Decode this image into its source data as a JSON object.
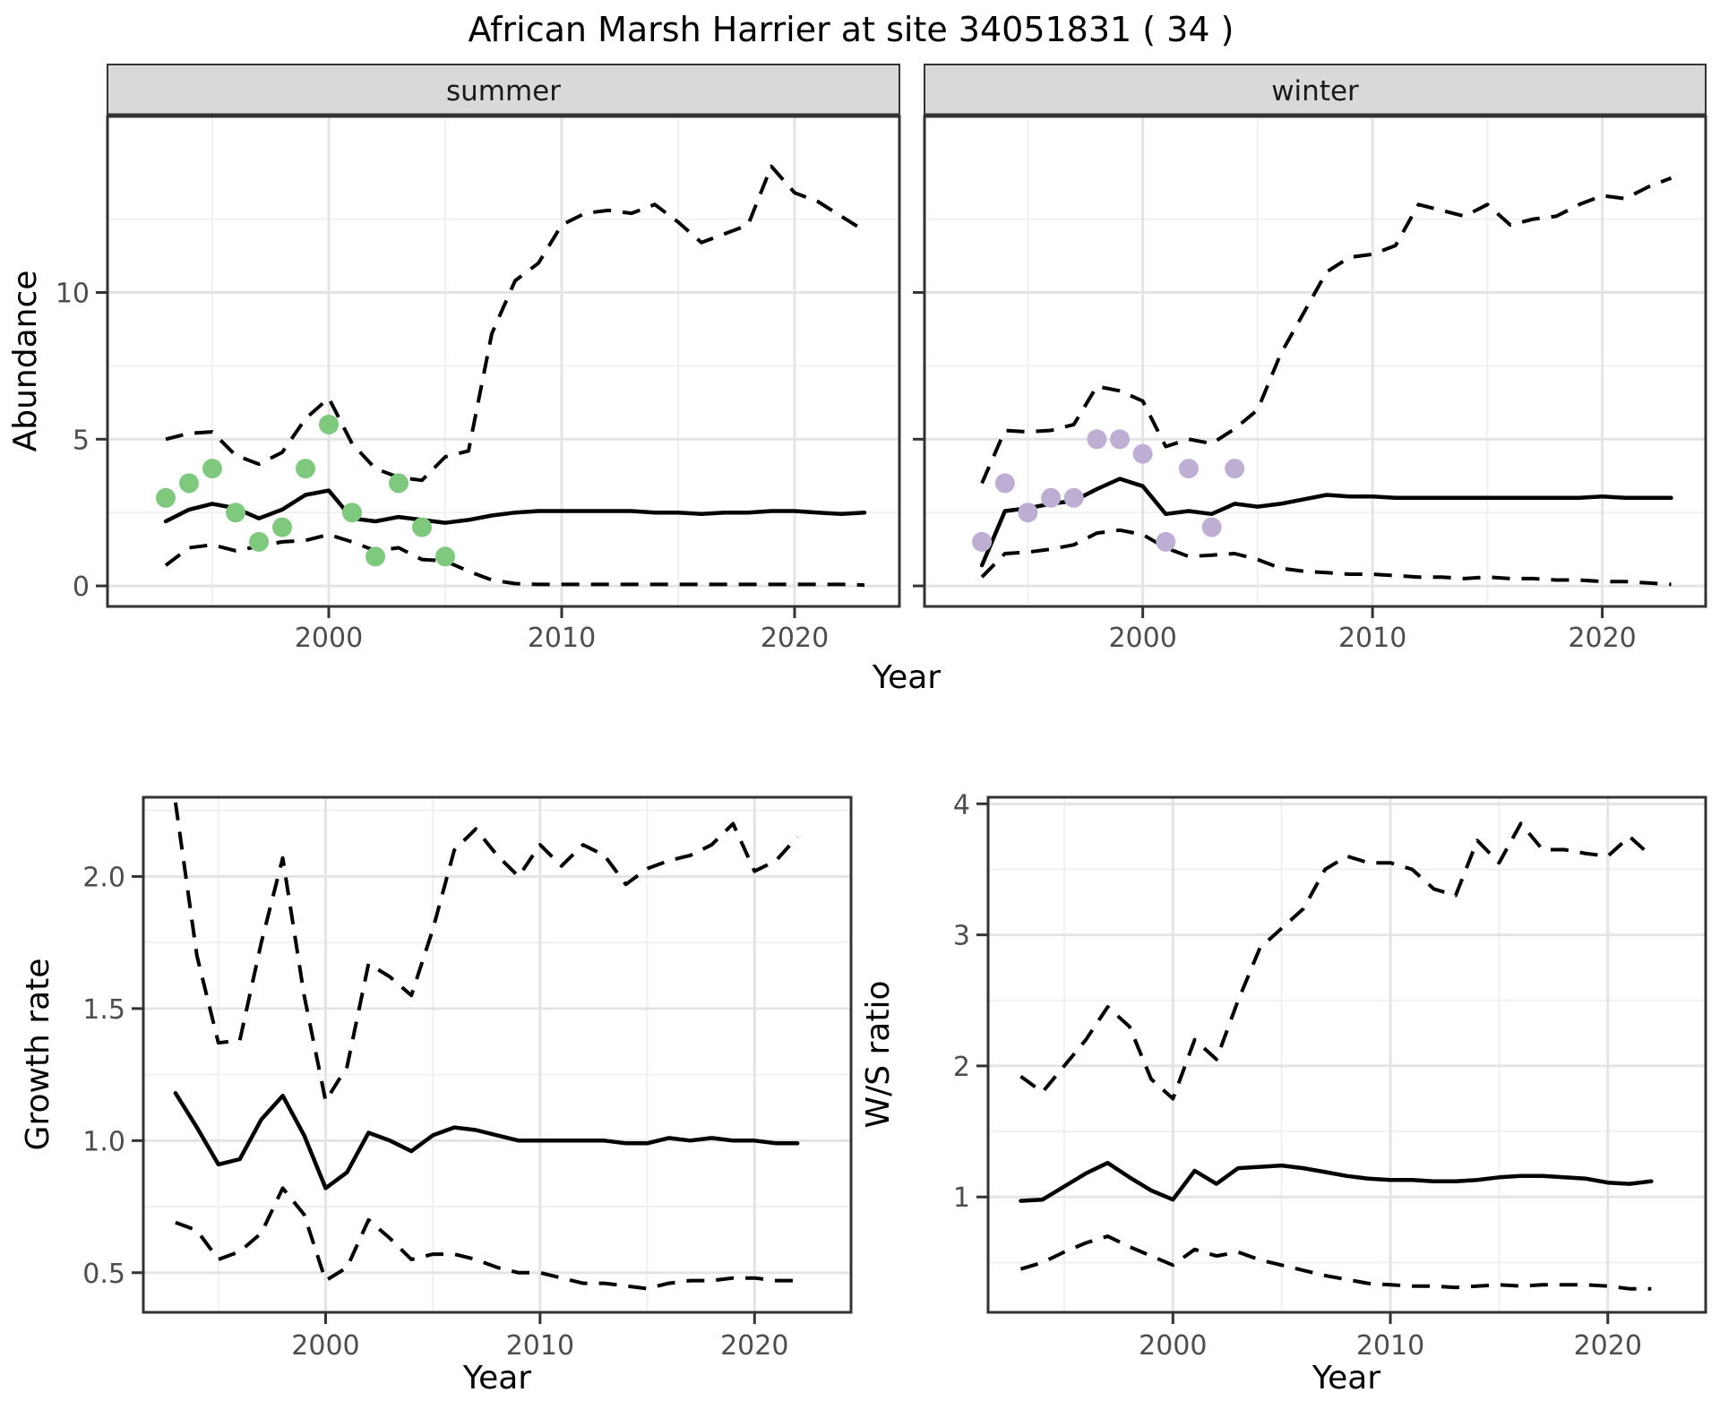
{
  "title": "African Marsh Harrier at site 34051831 ( 34 )",
  "facets": {
    "summer": "summer",
    "winter": "winter"
  },
  "shared_x_label": "Year",
  "colors": {
    "summer_points": "#7FC97F",
    "winter_points": "#BEAED4",
    "line": "#000000",
    "strip_bg": "#d9d9d9",
    "panel_border": "#333333",
    "grid_major": "#e4e4e4",
    "grid_minor": "#f0f0f0",
    "tick_text": "#4d4d4d"
  },
  "chart_data": [
    {
      "id": "abundance-summer",
      "type": "line",
      "facet": "summer",
      "xlabel": "Year",
      "ylabel": "Abundance",
      "xlim": [
        1990.5,
        2024.5
      ],
      "ylim": [
        -0.7,
        16.0
      ],
      "grid": true,
      "legend": "none",
      "x_ticks": {
        "major": [
          2000,
          2010,
          2020
        ],
        "minor": [
          1995,
          2005,
          2015
        ],
        "labels": [
          "2000",
          "2010",
          "2020"
        ]
      },
      "y_ticks": {
        "major": [
          0,
          5,
          10
        ],
        "minor": [
          2.5,
          7.5,
          12.5
        ],
        "labels": [
          "0",
          "5",
          "10"
        ]
      },
      "x": [
        1993,
        1994,
        1995,
        1996,
        1997,
        1998,
        1999,
        2000,
        2001,
        2002,
        2003,
        2004,
        2005,
        2006,
        2007,
        2008,
        2009,
        2010,
        2011,
        2012,
        2013,
        2014,
        2015,
        2016,
        2017,
        2018,
        2019,
        2020,
        2021,
        2022,
        2023
      ],
      "series": [
        {
          "name": "median",
          "style": "solid",
          "values": [
            2.2,
            2.6,
            2.8,
            2.65,
            2.3,
            2.6,
            3.1,
            3.25,
            2.3,
            2.2,
            2.35,
            2.25,
            2.15,
            2.25,
            2.4,
            2.5,
            2.55,
            2.55,
            2.55,
            2.55,
            2.55,
            2.5,
            2.5,
            2.45,
            2.5,
            2.5,
            2.55,
            2.55,
            2.5,
            2.45,
            2.5
          ]
        },
        {
          "name": "upper-ci",
          "style": "dashed",
          "values": [
            5.0,
            5.2,
            5.25,
            4.45,
            4.15,
            4.55,
            5.7,
            6.4,
            4.85,
            4.0,
            3.7,
            3.6,
            4.4,
            4.6,
            8.6,
            10.4,
            11.0,
            12.3,
            12.7,
            12.8,
            12.7,
            13.0,
            12.4,
            11.7,
            12.0,
            12.3,
            14.3,
            13.4,
            13.1,
            12.6,
            12.1
          ]
        },
        {
          "name": "lower-ci",
          "style": "dashed",
          "values": [
            0.7,
            1.3,
            1.4,
            1.2,
            1.35,
            1.5,
            1.55,
            1.75,
            1.5,
            1.2,
            1.3,
            0.9,
            0.85,
            0.5,
            0.2,
            0.08,
            0.05,
            0.05,
            0.05,
            0.05,
            0.05,
            0.05,
            0.05,
            0.05,
            0.05,
            0.05,
            0.05,
            0.05,
            0.05,
            0.05,
            0.03
          ]
        }
      ],
      "points": {
        "name": "observed-counts-summer",
        "color": "#7FC97F",
        "x": [
          1993,
          1994,
          1995,
          1996,
          1997,
          1998,
          1999,
          2000,
          2001,
          2002,
          2003,
          2004,
          2005
        ],
        "y": [
          3.0,
          3.5,
          4.0,
          2.5,
          1.5,
          2.0,
          4.0,
          5.5,
          2.5,
          1.0,
          3.5,
          2.0,
          1.0
        ]
      }
    },
    {
      "id": "abundance-winter",
      "type": "line",
      "facet": "winter",
      "xlabel": "Year",
      "ylabel": "Abundance",
      "xlim": [
        1990.5,
        2024.5
      ],
      "ylim": [
        -0.7,
        16.0
      ],
      "grid": true,
      "legend": "none",
      "x_ticks": {
        "major": [
          2000,
          2010,
          2020
        ],
        "minor": [
          1995,
          2005,
          2015
        ],
        "labels": [
          "2000",
          "2010",
          "2020"
        ]
      },
      "y_ticks": {
        "major": [
          0,
          5,
          10
        ],
        "minor": [
          2.5,
          7.5,
          12.5
        ],
        "labels": [
          "0",
          "5",
          "10"
        ]
      },
      "x": [
        1993,
        1994,
        1995,
        1996,
        1997,
        1998,
        1999,
        2000,
        2001,
        2002,
        2003,
        2004,
        2005,
        2006,
        2007,
        2008,
        2009,
        2010,
        2011,
        2012,
        2013,
        2014,
        2015,
        2016,
        2017,
        2018,
        2019,
        2020,
        2021,
        2022,
        2023
      ],
      "series": [
        {
          "name": "median",
          "style": "solid",
          "values": [
            0.7,
            2.55,
            2.65,
            2.8,
            2.9,
            3.3,
            3.65,
            3.4,
            2.45,
            2.55,
            2.45,
            2.8,
            2.7,
            2.8,
            2.95,
            3.1,
            3.05,
            3.05,
            3.0,
            3.0,
            3.0,
            3.0,
            3.0,
            3.0,
            3.0,
            3.0,
            3.0,
            3.05,
            3.0,
            3.0,
            3.0
          ]
        },
        {
          "name": "upper-ci",
          "style": "dashed",
          "values": [
            3.5,
            5.3,
            5.25,
            5.3,
            5.5,
            6.8,
            6.65,
            6.3,
            4.75,
            5.0,
            4.85,
            5.35,
            6.0,
            7.9,
            9.3,
            10.7,
            11.2,
            11.3,
            11.6,
            13.0,
            12.8,
            12.6,
            13.0,
            12.3,
            12.5,
            12.6,
            13.0,
            13.3,
            13.2,
            13.6,
            13.9
          ]
        },
        {
          "name": "lower-ci",
          "style": "dashed",
          "values": [
            0.3,
            1.1,
            1.15,
            1.25,
            1.4,
            1.8,
            1.9,
            1.75,
            1.3,
            1.0,
            1.05,
            1.1,
            0.9,
            0.6,
            0.5,
            0.45,
            0.4,
            0.4,
            0.35,
            0.3,
            0.3,
            0.25,
            0.3,
            0.25,
            0.25,
            0.2,
            0.2,
            0.15,
            0.15,
            0.1,
            0.05
          ]
        }
      ],
      "points": {
        "name": "observed-counts-winter",
        "color": "#BEAED4",
        "x": [
          1993,
          1994,
          1995,
          1996,
          1997,
          1998,
          1999,
          2000,
          2001,
          2002,
          2003,
          2004
        ],
        "y": [
          1.5,
          3.5,
          2.5,
          3.0,
          3.0,
          5.0,
          5.0,
          4.5,
          1.5,
          4.0,
          2.0,
          4.0
        ]
      }
    },
    {
      "id": "growth-rate",
      "type": "line",
      "facet": "",
      "xlabel": "Year",
      "ylabel": "Growth rate",
      "xlim": [
        1991.5,
        2024.5
      ],
      "ylim": [
        0.35,
        2.3
      ],
      "grid": true,
      "legend": "none",
      "x_ticks": {
        "major": [
          2000,
          2010,
          2020
        ],
        "minor": [
          1995,
          2005,
          2015
        ],
        "labels": [
          "2000",
          "2010",
          "2020"
        ]
      },
      "y_ticks": {
        "major": [
          0.5,
          1.0,
          1.5,
          2.0
        ],
        "minor": [
          0.75,
          1.25,
          1.75,
          2.25
        ],
        "labels": [
          "0.5",
          "1.0",
          "1.5",
          "2.0"
        ]
      },
      "x": [
        1993,
        1994,
        1995,
        1996,
        1997,
        1998,
        1999,
        2000,
        2001,
        2002,
        2003,
        2004,
        2005,
        2006,
        2007,
        2008,
        2009,
        2010,
        2011,
        2012,
        2013,
        2014,
        2015,
        2016,
        2017,
        2018,
        2019,
        2020,
        2021,
        2022
      ],
      "series": [
        {
          "name": "median",
          "style": "solid",
          "values": [
            1.18,
            1.05,
            0.91,
            0.93,
            1.08,
            1.17,
            1.02,
            0.82,
            0.88,
            1.03,
            1.0,
            0.96,
            1.02,
            1.05,
            1.04,
            1.02,
            1.0,
            1.0,
            1.0,
            1.0,
            1.0,
            0.99,
            0.99,
            1.01,
            1.0,
            1.01,
            1.0,
            1.0,
            0.99,
            0.99
          ]
        },
        {
          "name": "upper-ci",
          "style": "dashed",
          "values": [
            2.28,
            1.7,
            1.37,
            1.38,
            1.75,
            2.07,
            1.55,
            1.15,
            1.28,
            1.67,
            1.62,
            1.55,
            1.8,
            2.1,
            2.18,
            2.08,
            2.0,
            2.12,
            2.04,
            2.12,
            2.08,
            1.97,
            2.03,
            2.06,
            2.08,
            2.12,
            2.2,
            2.02,
            2.06,
            2.15
          ]
        },
        {
          "name": "lower-ci",
          "style": "dashed",
          "values": [
            0.69,
            0.66,
            0.55,
            0.58,
            0.65,
            0.82,
            0.72,
            0.47,
            0.52,
            0.7,
            0.63,
            0.55,
            0.57,
            0.57,
            0.55,
            0.52,
            0.5,
            0.5,
            0.48,
            0.46,
            0.46,
            0.45,
            0.44,
            0.46,
            0.47,
            0.47,
            0.48,
            0.48,
            0.47,
            0.47
          ]
        }
      ]
    },
    {
      "id": "ws-ratio",
      "type": "line",
      "facet": "",
      "xlabel": "Year",
      "ylabel": "W/S ratio",
      "xlim": [
        1991.5,
        2024.5
      ],
      "ylim": [
        0.12,
        4.05
      ],
      "grid": true,
      "legend": "none",
      "x_ticks": {
        "major": [
          2000,
          2010,
          2020
        ],
        "minor": [
          1995,
          2005,
          2015
        ],
        "labels": [
          "2000",
          "2010",
          "2020"
        ]
      },
      "y_ticks": {
        "major": [
          1,
          2,
          3,
          4
        ],
        "minor": [
          0.5,
          1.5,
          2.5,
          3.5
        ],
        "labels": [
          "1",
          "2",
          "3",
          "4"
        ]
      },
      "x": [
        1993,
        1994,
        1995,
        1996,
        1997,
        1998,
        1999,
        2000,
        2001,
        2002,
        2003,
        2004,
        2005,
        2006,
        2007,
        2008,
        2009,
        2010,
        2011,
        2012,
        2013,
        2014,
        2015,
        2016,
        2017,
        2018,
        2019,
        2020,
        2021,
        2022
      ],
      "series": [
        {
          "name": "median",
          "style": "solid",
          "values": [
            0.97,
            0.98,
            1.08,
            1.18,
            1.26,
            1.15,
            1.05,
            0.98,
            1.2,
            1.1,
            1.22,
            1.23,
            1.24,
            1.22,
            1.19,
            1.16,
            1.14,
            1.13,
            1.13,
            1.12,
            1.12,
            1.13,
            1.15,
            1.16,
            1.16,
            1.15,
            1.14,
            1.11,
            1.1,
            1.12
          ]
        },
        {
          "name": "upper-ci",
          "style": "dashed",
          "values": [
            1.92,
            1.8,
            2.0,
            2.2,
            2.45,
            2.3,
            1.9,
            1.75,
            2.2,
            2.05,
            2.5,
            2.9,
            3.05,
            3.2,
            3.5,
            3.6,
            3.55,
            3.55,
            3.5,
            3.35,
            3.3,
            3.72,
            3.55,
            3.85,
            3.65,
            3.65,
            3.62,
            3.6,
            3.75,
            3.6
          ]
        },
        {
          "name": "lower-ci",
          "style": "dashed",
          "values": [
            0.45,
            0.5,
            0.58,
            0.65,
            0.7,
            0.62,
            0.55,
            0.48,
            0.6,
            0.55,
            0.58,
            0.52,
            0.48,
            0.44,
            0.4,
            0.37,
            0.34,
            0.33,
            0.32,
            0.32,
            0.31,
            0.32,
            0.33,
            0.32,
            0.33,
            0.33,
            0.33,
            0.32,
            0.3,
            0.3
          ]
        }
      ]
    }
  ]
}
